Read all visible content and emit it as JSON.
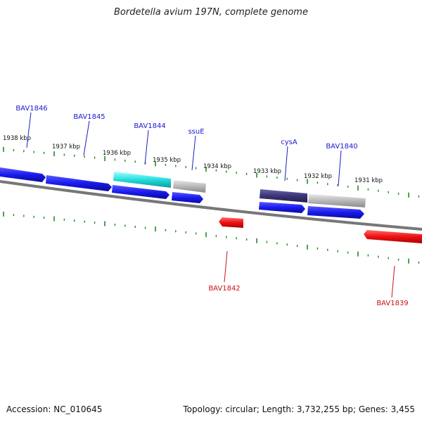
{
  "title": "Bordetella avium 197N, complete genome",
  "footer": {
    "accession": "Accession: NC_010645",
    "summary": "Topology: circular; Length: 3,732,255 bp; Genes: 3,455"
  },
  "colors": {
    "forward_gene": "#1a1aee",
    "reverse_gene": "#ee1111",
    "highlight_cyan": "#22dddd",
    "highlight_navy": "#3a3577",
    "other_gene": "#b8b8b8",
    "tick": "#1f8a1f",
    "backbone": "#777777",
    "label_blue": "#1a1acc",
    "label_red": "#cc1111"
  },
  "kbp_labels": [
    {
      "text": "1938 kbp"
    },
    {
      "text": "1937 kbp"
    },
    {
      "text": "1936 kbp"
    },
    {
      "text": "1935 kbp"
    },
    {
      "text": "1934 kbp"
    },
    {
      "text": "1933 kbp"
    },
    {
      "text": "1932 kbp"
    },
    {
      "text": "1931 kbp"
    }
  ],
  "gene_labels": [
    {
      "text": "BAV1846",
      "strand": "forward"
    },
    {
      "text": "BAV1845",
      "strand": "forward"
    },
    {
      "text": "BAV1844",
      "strand": "forward"
    },
    {
      "text": "ssuE",
      "strand": "forward"
    },
    {
      "text": "cysA",
      "strand": "forward"
    },
    {
      "text": "BAV1840",
      "strand": "forward"
    },
    {
      "text": "BAV1842",
      "strand": "reverse"
    },
    {
      "text": "BAV1839",
      "strand": "reverse"
    }
  ]
}
